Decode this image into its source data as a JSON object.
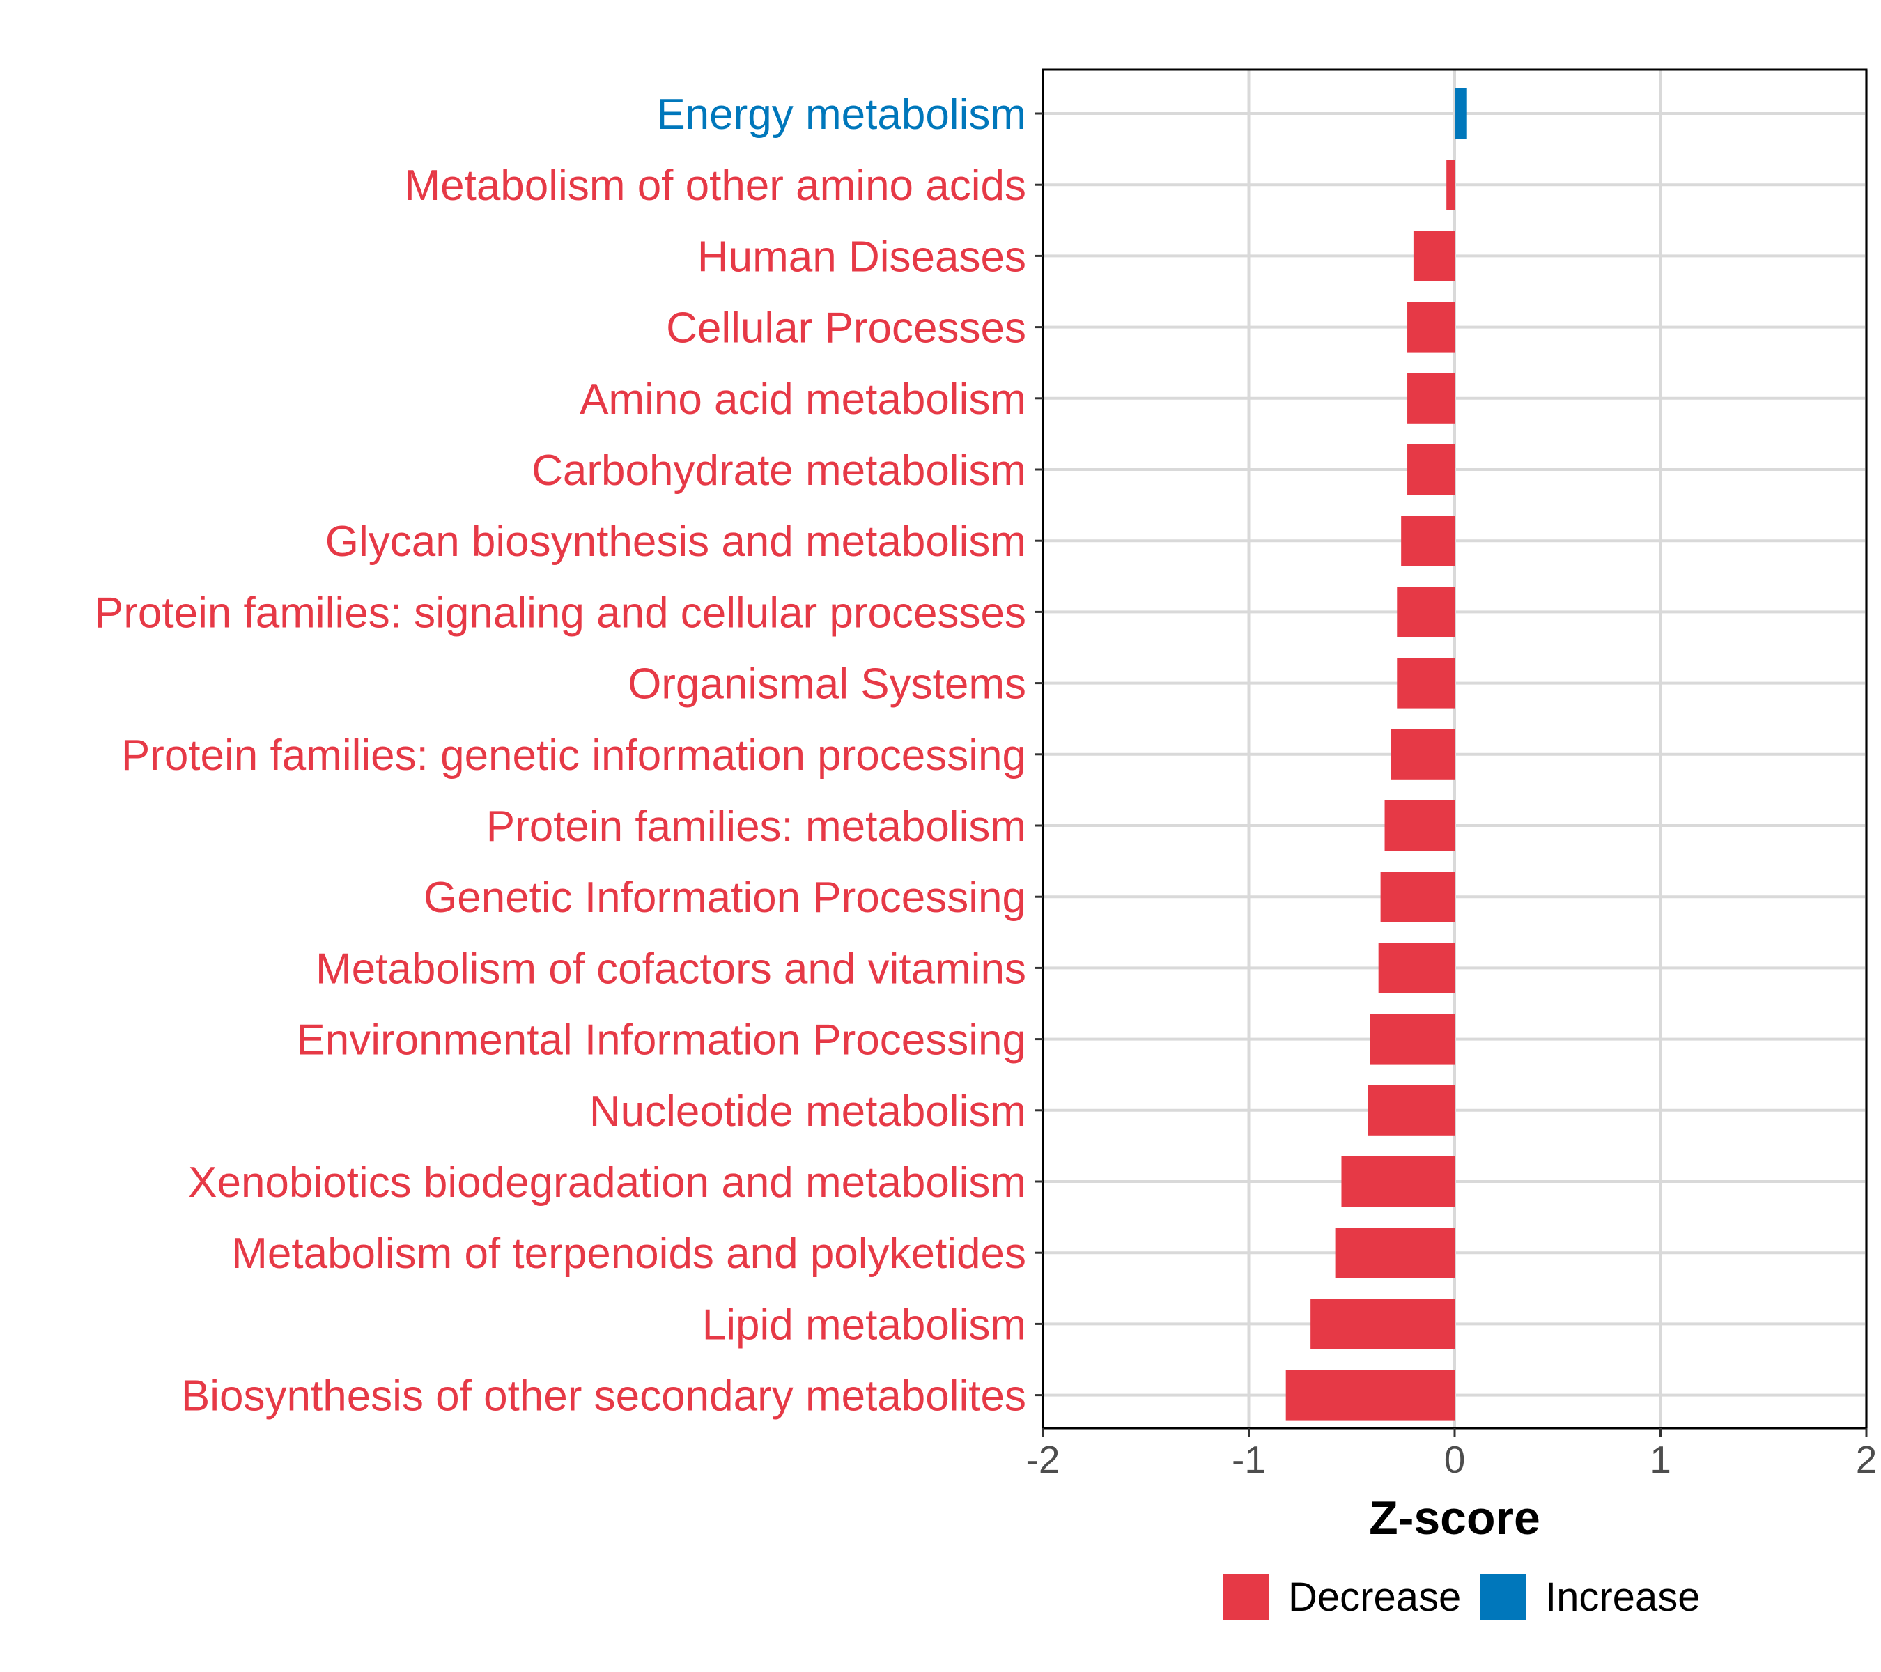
{
  "chart_data": {
    "type": "bar",
    "orientation": "horizontal",
    "title": "",
    "xlabel": "Z-score",
    "ylabel": "",
    "xlim": [
      -2,
      2
    ],
    "xticks": [
      -2,
      -1,
      0,
      1,
      2
    ],
    "xtick_labels": [
      "-2",
      "-1",
      "0",
      "1",
      "2"
    ],
    "grid": true,
    "legend_position": "bottom",
    "legend": [
      {
        "label": "Decrease",
        "color": "#E63946"
      },
      {
        "label": "Increase",
        "color": "#0077BB"
      }
    ],
    "categories": [
      "Energy metabolism",
      "Metabolism of other amino acids",
      "Human Diseases",
      "Cellular Processes",
      "Amino acid metabolism",
      "Carbohydrate metabolism",
      "Glycan biosynthesis and metabolism",
      "Protein families: signaling and cellular processes",
      "Organismal Systems",
      "Protein families: genetic information processing",
      "Protein families: metabolism",
      "Genetic Information Processing",
      "Metabolism of cofactors and vitamins",
      "Environmental Information Processing",
      "Nucleotide metabolism",
      "Xenobiotics biodegradation and metabolism",
      "Metabolism of terpenoids and polyketides",
      "Lipid metabolism",
      "Biosynthesis of other secondary metabolites"
    ],
    "values": [
      0.06,
      -0.04,
      -0.2,
      -0.23,
      -0.23,
      -0.23,
      -0.26,
      -0.28,
      -0.28,
      -0.31,
      -0.34,
      -0.36,
      -0.37,
      -0.41,
      -0.42,
      -0.55,
      -0.58,
      -0.7,
      -0.82
    ],
    "directions": [
      "Increase",
      "Decrease",
      "Decrease",
      "Decrease",
      "Decrease",
      "Decrease",
      "Decrease",
      "Decrease",
      "Decrease",
      "Decrease",
      "Decrease",
      "Decrease",
      "Decrease",
      "Decrease",
      "Decrease",
      "Decrease",
      "Decrease",
      "Decrease",
      "Decrease"
    ]
  }
}
